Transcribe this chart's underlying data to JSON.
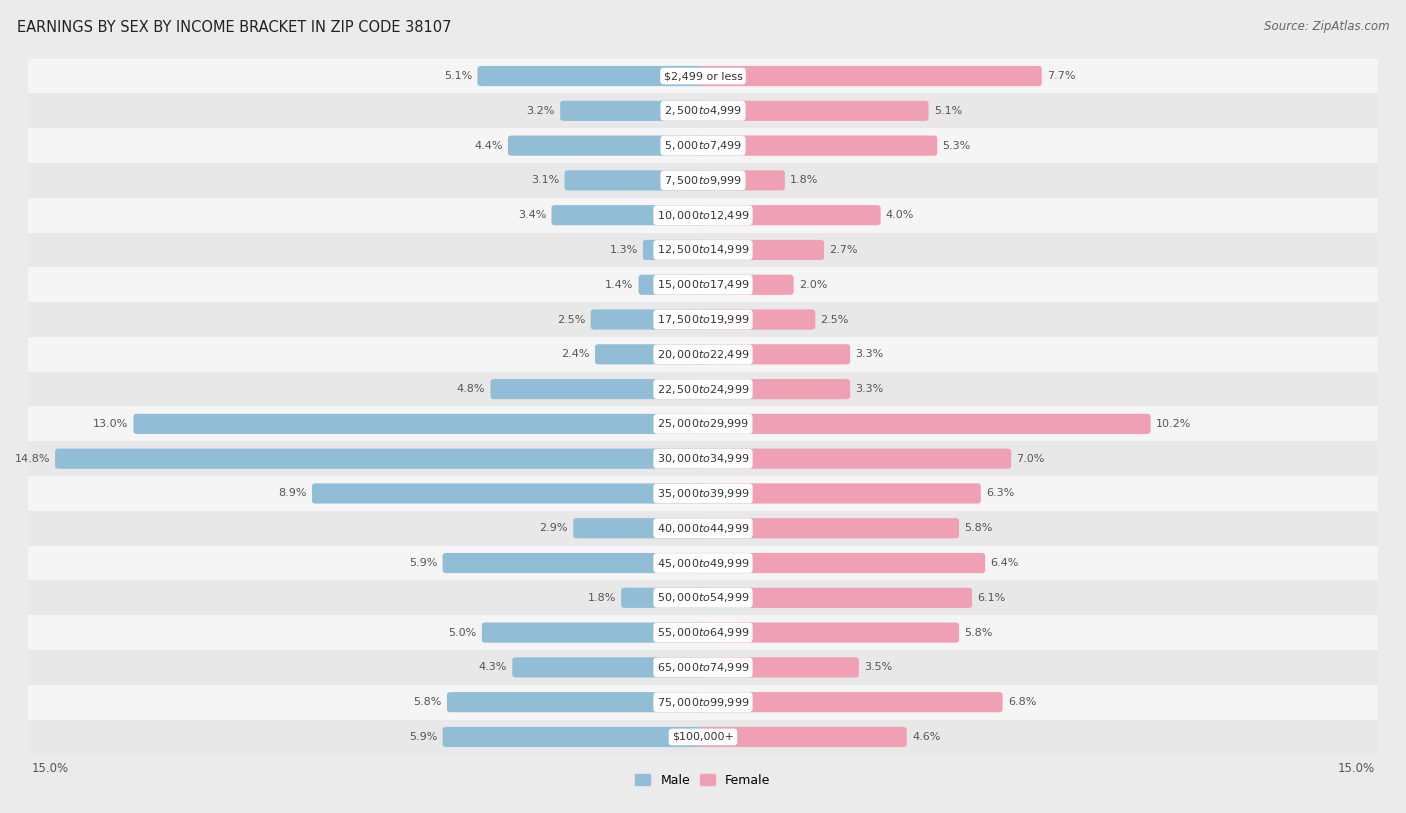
{
  "title": "EARNINGS BY SEX BY INCOME BRACKET IN ZIP CODE 38107",
  "source": "Source: ZipAtlas.com",
  "categories": [
    "$2,499 or less",
    "$2,500 to $4,999",
    "$5,000 to $7,499",
    "$7,500 to $9,999",
    "$10,000 to $12,499",
    "$12,500 to $14,999",
    "$15,000 to $17,499",
    "$17,500 to $19,999",
    "$20,000 to $22,499",
    "$22,500 to $24,999",
    "$25,000 to $29,999",
    "$30,000 to $34,999",
    "$35,000 to $39,999",
    "$40,000 to $44,999",
    "$45,000 to $49,999",
    "$50,000 to $54,999",
    "$55,000 to $64,999",
    "$65,000 to $74,999",
    "$75,000 to $99,999",
    "$100,000+"
  ],
  "male_values": [
    5.1,
    3.2,
    4.4,
    3.1,
    3.4,
    1.3,
    1.4,
    2.5,
    2.4,
    4.8,
    13.0,
    14.8,
    8.9,
    2.9,
    5.9,
    1.8,
    5.0,
    4.3,
    5.8,
    5.9
  ],
  "female_values": [
    7.7,
    5.1,
    5.3,
    1.8,
    4.0,
    2.7,
    2.0,
    2.5,
    3.3,
    3.3,
    10.2,
    7.0,
    6.3,
    5.8,
    6.4,
    6.1,
    5.8,
    3.5,
    6.8,
    4.6
  ],
  "male_color": "#92bdd6",
  "female_color": "#f0a0b5",
  "male_label": "Male",
  "female_label": "Female",
  "axis_limit": 15.0,
  "bg_color": "#ebebeb",
  "row_light": "#f5f5f5",
  "row_dark": "#e8e8e8",
  "title_fontsize": 10.5,
  "source_fontsize": 8.5,
  "label_fontsize": 8,
  "category_fontsize": 8,
  "legend_fontsize": 9,
  "axis_label_fontsize": 8.5
}
